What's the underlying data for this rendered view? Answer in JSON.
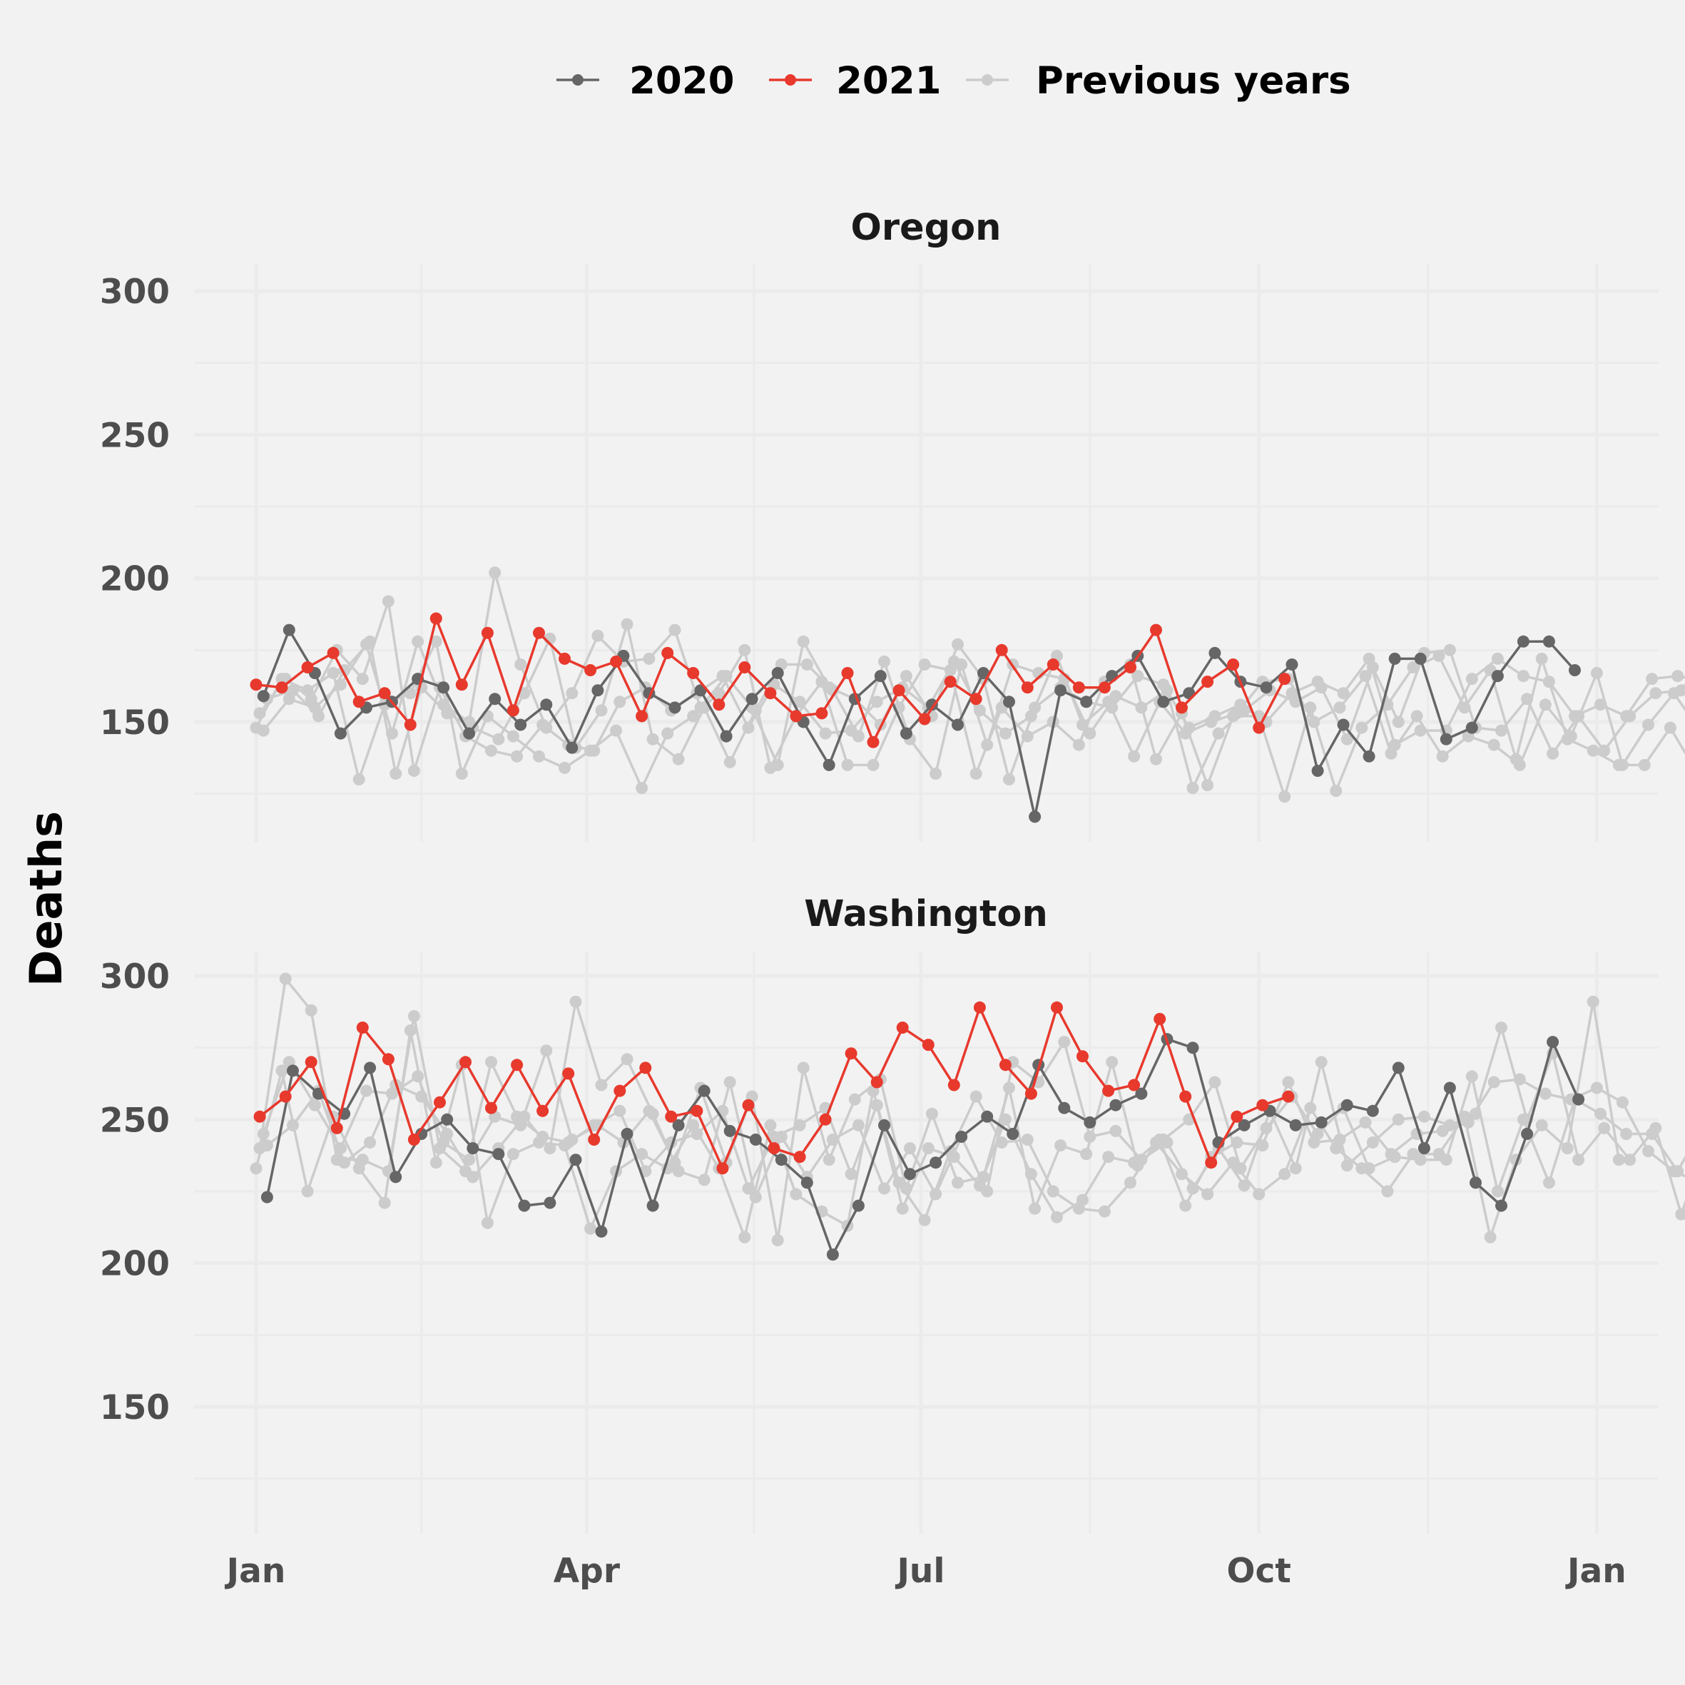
{
  "chart_data": {
    "type": "line",
    "ylabel": "Deaths",
    "xlabel": "",
    "ylim": [
      110,
      310
    ],
    "yticks": [
      150,
      200,
      250,
      300
    ],
    "x_unit": "day of year",
    "xticks": [
      {
        "label": "Jan",
        "day": 0
      },
      {
        "label": "Apr",
        "day": 90
      },
      {
        "label": "Jul",
        "day": 181
      },
      {
        "label": "Oct",
        "day": 273
      },
      {
        "label": "Jan",
        "day": 365
      }
    ],
    "grid": true,
    "legend_position": "top",
    "legend": [
      {
        "label": "2020",
        "color": "#666666"
      },
      {
        "label": "2021",
        "color": "#e8392d"
      },
      {
        "label": "Previous years",
        "color": "#cccccc"
      }
    ],
    "panels": [
      {
        "title": "Oregon",
        "series": [
          {
            "name": "Previous years",
            "color": "#cccccc",
            "start_day": 0,
            "values": [
              148,
              165,
              161,
              167,
              130,
              156,
              160,
              178,
              132,
              152,
              145,
              138,
              134,
              140,
              147,
              127,
              146,
              152,
              160,
              175,
              134,
              152,
              164,
              135,
              135,
              155,
              170,
              168,
              132,
              155,
              145,
              150,
              142,
              164,
              170,
              137,
              153,
              128,
              152,
              152,
              124,
              155,
              126,
              148,
              156,
              169,
              173,
              155,
              168,
              137,
              172,
              144,
              140,
              135,
              135,
              148,
              133,
              155,
              178,
              124,
              140,
              140,
              149,
              172,
              166,
              158,
              155,
              146,
              157,
              177,
              163,
              160,
              161,
              157,
              150,
              145,
              137,
              155,
              154,
              139,
              141,
              142,
              165
            ]
          },
          {
            "name": "Previous years",
            "color": "#cccccc",
            "start_day": 1,
            "values": [
              153,
              165,
              158,
              175,
              165,
              192,
              133,
              162,
              145,
              140,
              138,
              149,
              142,
              140,
              157,
              162,
              154,
              160,
              166,
              148,
              163,
              157,
              146,
              147,
              157,
              162,
              155,
              171,
              154,
              146,
              152,
              173,
              149,
              157,
              138,
              157,
              146,
              150,
              153,
              164,
              165,
              150,
              155,
              166,
              139,
              152,
              138,
              145,
              142,
              135,
              156,
              145,
              167,
              135,
              149,
              160,
              147,
              150,
              164,
              158,
              142,
              160,
              181,
              146,
              152,
              178,
              162,
              175,
              165,
              155,
              154,
              159,
              153,
              174,
              165,
              162,
              163,
              172,
              152,
              152,
              159,
              144,
              156,
              160
            ]
          },
          {
            "name": "Previous years",
            "color": "#cccccc",
            "start_day": 2,
            "values": [
              147,
              158,
              155,
              163,
              177,
              146,
              178,
              156,
              150,
              202,
              170,
              148,
              160,
              180,
              171,
              172,
              182,
              155,
              166,
              155,
              135,
              178,
              162,
              158,
              149,
              166,
              152,
              177,
              165,
              130,
              155,
              162,
              157,
              155,
              166,
              163,
              148,
              152,
              156,
              150,
              160,
              164,
              160,
              172,
              142,
              147,
              147,
              165,
              172,
              166,
              164,
              152,
              156,
              152,
              165,
              166,
              164,
              164,
              147,
              140,
              158,
              167,
              172,
              147,
              154,
              155,
              162,
              150,
              172,
              149,
              143,
              158,
              152,
              173,
              172,
              158,
              151,
              160,
              159,
              167,
              147,
              158,
              168,
              164
            ]
          },
          {
            "name": "Previous years",
            "color": "#cccccc",
            "start_day": 3,
            "values": [
              158,
              161,
              152,
              168,
              178,
              132,
              162,
              153,
              148,
              144,
              160,
              179,
              141,
              154,
              184,
              144,
              137,
              155,
              136,
              154,
              170,
              170,
              161,
              145,
              171,
              144,
              132,
              170,
              142,
              170,
              167,
              165,
              146,
              159,
              155,
              161,
              127,
              146,
              154,
              161,
              157,
              162,
              144,
              169,
              150,
              174,
              175,
              148,
              147,
              158,
              139,
              152,
              140,
              152,
              160,
              161,
              173,
              150,
              156,
              183,
              141,
              141,
              163,
              158,
              157,
              175,
              163,
              165,
              158,
              151,
              136,
              155,
              177,
              138,
              155,
              152,
              145,
              145,
              158,
              150,
              141,
              168,
              150,
              154
            ]
          },
          {
            "name": "2020",
            "color": "#666666",
            "start_day": 2,
            "values": [
              159,
              182,
              167,
              146,
              155,
              157,
              165,
              162,
              146,
              158,
              149,
              156,
              141,
              161,
              173,
              160,
              155,
              161,
              145,
              158,
              167,
              150,
              135,
              158,
              166,
              146,
              156,
              149,
              167,
              157,
              117,
              161,
              157,
              166,
              173,
              157,
              160,
              174,
              164,
              162,
              170,
              133,
              149,
              138,
              172,
              172,
              144,
              148,
              166,
              178,
              178,
              168
            ]
          },
          {
            "name": "2021",
            "color": "#e8392d",
            "start_day": 0,
            "values": [
              163,
              162,
              169,
              174,
              157,
              160,
              149,
              186,
              163,
              181,
              154,
              181,
              172,
              168,
              171,
              152,
              174,
              167,
              156,
              169,
              160,
              152,
              153,
              167,
              143,
              161,
              151,
              164,
              158,
              175,
              162,
              170,
              162,
              162,
              169,
              182,
              155,
              164,
              170,
              148,
              165
            ]
          }
        ]
      },
      {
        "title": "Washington",
        "series": [
          {
            "name": "Previous years",
            "color": "#cccccc",
            "start_day": 0,
            "values": [
              233,
              267,
              225,
              251,
              233,
              221,
              281,
              235,
              269,
              214,
              238,
              242,
              241,
              212,
              232,
              238,
              233,
              248,
              233,
              209,
              248,
              224,
              218,
              213,
              260,
              228,
              215,
              239,
              258,
              242,
              243,
              225,
              219,
              218,
              228,
              242,
              231,
              224,
              235,
              224,
              231,
              254,
              240,
              233,
              225,
              238,
              238,
              251,
              209,
              236,
              248,
              240,
              291,
              236
            ]
          },
          {
            "name": "Previous years",
            "color": "#cccccc",
            "start_day": 1,
            "values": [
              240,
              299,
              288,
              236,
              236,
              232,
              286,
              240,
              232,
              270,
              251,
              244,
              242,
              248,
              253,
              232,
              242,
              245,
              253,
              226,
              244,
              248,
              254,
              231,
              255,
              219,
              240,
              237,
              227,
              250,
              231,
              216,
              222,
              237,
              235,
              243,
              220,
              237,
              242,
              241,
              263,
              242,
              243,
              249,
              238,
              245,
              246,
              249,
              263,
              264,
              259,
              257,
              261,
              256,
              239,
              232,
              228,
              224,
              260,
              278,
              260,
              247,
              244,
              255
            ]
          },
          {
            "name": "Previous years",
            "color": "#cccccc",
            "start_day": 2,
            "values": [
              245,
              270,
              255,
              240,
              260,
              259,
              265,
              242,
              236,
              251,
              248,
              274,
              243,
              248,
              242,
              253,
              235,
              261,
              235,
              258,
              208,
              268,
              236,
              257,
              264,
              226,
              252,
              228,
              230,
              261,
              219,
              241,
              238,
              270,
              234,
              243,
              250,
              263,
              233,
              247,
              258,
              245,
              254,
              233,
              237,
              236,
              236,
              265,
              225,
              250,
              228,
              257,
              252,
              245,
              245,
              232,
              248,
              218,
              255,
              247,
              248,
              266,
              239,
              250,
              246,
              260
            ]
          },
          {
            "name": "Previous years",
            "color": "#cccccc",
            "start_day": 3,
            "values": [
              241,
              248,
              260,
              235,
              242,
              262,
              258,
              245,
              230,
              240,
              251,
              240,
              291,
              262,
              271,
              252,
              232,
              229,
              263,
              223,
              244,
              230,
              243,
              248,
              226,
              240,
              224,
              244,
              225,
              270,
              263,
              277,
              244,
              246,
              236,
              242,
              226,
              240,
              227,
              253,
              233,
              270,
              234,
              242,
              250,
              251,
              248,
              252,
              282,
              250,
              273,
              236,
              247,
              236,
              247,
              217,
              243
            ]
          },
          {
            "name": "2020",
            "color": "#666666",
            "start_day": 3,
            "values": [
              223,
              267,
              259,
              252,
              268,
              230,
              245,
              250,
              240,
              238,
              220,
              221,
              236,
              211,
              245,
              220,
              248,
              260,
              246,
              243,
              236,
              228,
              203,
              220,
              248,
              231,
              235,
              244,
              251,
              245,
              269,
              254,
              249,
              255,
              259,
              278,
              275,
              242,
              248,
              253,
              248,
              249,
              255,
              253,
              268,
              240,
              261,
              228,
              220,
              245,
              277,
              257
            ]
          },
          {
            "name": "2021",
            "color": "#e8392d",
            "start_day": 1,
            "values": [
              251,
              258,
              270,
              247,
              282,
              271,
              243,
              256,
              270,
              254,
              269,
              253,
              266,
              243,
              260,
              268,
              251,
              253,
              233,
              255,
              240,
              237,
              250,
              273,
              263,
              282,
              276,
              262,
              289,
              269,
              259,
              289,
              272,
              260,
              262,
              285,
              258,
              235,
              251,
              255,
              258
            ]
          }
        ]
      }
    ]
  }
}
